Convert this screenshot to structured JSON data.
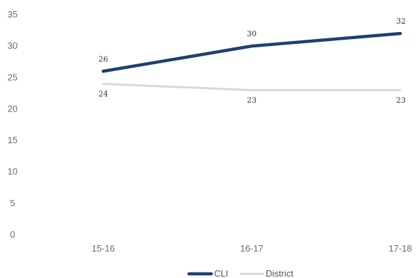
{
  "chart_data": {
    "type": "line",
    "categories": [
      "15-16",
      "16-17",
      "17-18"
    ],
    "series": [
      {
        "name": "CLI",
        "values": [
          26,
          30,
          32
        ],
        "color": "#1f3f73"
      },
      {
        "name": "District",
        "values": [
          24,
          23,
          23
        ],
        "color": "#d6d8dc"
      }
    ],
    "yticks": [
      "0",
      "5",
      "10",
      "15",
      "20",
      "25",
      "30",
      "35"
    ],
    "ylim": [
      0,
      35
    ],
    "grid": false,
    "legend": "bottom"
  }
}
